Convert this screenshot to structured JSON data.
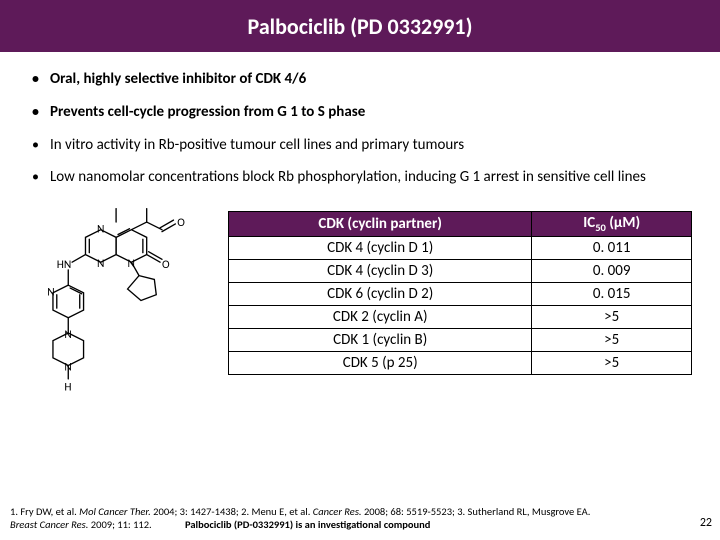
{
  "colors": {
    "title_bg": "#5e1a59",
    "table_header_bg": "#5e1a59",
    "text": "#000000",
    "title_text": "#ffffff"
  },
  "title": "Palbociclib (PD 0332991)",
  "bullets": [
    {
      "text": "Oral, highly selective inhibitor of CDK 4/6",
      "bold": true
    },
    {
      "text": "Prevents cell-cycle progression from G 1 to S phase",
      "bold": true
    },
    {
      "text": "In vitro activity in Rb-positive tumour cell lines and primary tumours",
      "bold": false
    },
    {
      "text": "Low nanomolar concentrations block Rb phosphorylation, inducing G 1 arrest in sensitive cell lines",
      "bold": false
    }
  ],
  "table": {
    "headers": [
      "CDK (cyclin partner)",
      "IC₅₀ (µM)"
    ],
    "header_bg": "#5e1a59",
    "rows": [
      [
        "CDK 4 (cyclin D 1)",
        "0. 011"
      ],
      [
        "CDK 4 (cyclin D 3)",
        "0. 009"
      ],
      [
        "CDK 6 (cyclin D 2)",
        "0. 015"
      ],
      [
        "CDK 2 (cyclin A)",
        ">5"
      ],
      [
        "CDK 1 (cyclin B)",
        ">5"
      ],
      [
        "CDK 5 (p 25)",
        ">5"
      ]
    ]
  },
  "footer": {
    "line1_a": "1. Fry DW, et al. ",
    "line1_b_italic": "Mol Cancer Ther. ",
    "line1_c": "2004; 3: 1427-1438; 2. Menu E, et al. ",
    "line1_d_italic": "Cancer Res. ",
    "line1_e": "2008; 68: 5519-5523; 3. Sutherland RL, Musgrove EA.",
    "line2_a_italic": "Breast Cancer Res. ",
    "line2_b": "2009; 11: 112.",
    "line2_c_bold": "Palbociclib (PD-0332991) is an investigational compound"
  },
  "page_number": "22",
  "molecule": {
    "stroke": "#000000",
    "stroke_width": 1.4
  }
}
